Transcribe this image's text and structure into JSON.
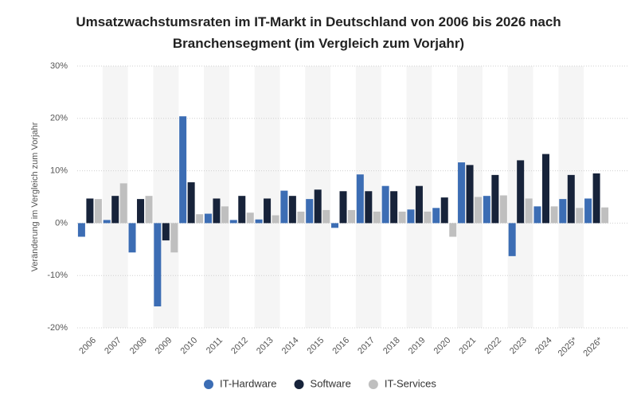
{
  "chart_data": {
    "type": "bar",
    "title": "Umsatzwachstumsraten im IT-Markt in Deutschland von 2006 bis 2026 nach Branchensegment (im Vergleich zum Vorjahr)",
    "y_label": "Veränderung im Vergleich zum Vorjahr",
    "categories": [
      "2006",
      "2007",
      "2008",
      "2009",
      "2010",
      "2011",
      "2012",
      "2013",
      "2014",
      "2015",
      "2016",
      "2017",
      "2018",
      "2019",
      "2020",
      "2021",
      "2022",
      "2023",
      "2024",
      "2025*",
      "2026*"
    ],
    "series": [
      {
        "name": "IT-Hardware",
        "color": "#3c6db4",
        "values": [
          -2.6,
          0.6,
          -5.6,
          -15.9,
          20.4,
          1.8,
          0.6,
          0.7,
          6.2,
          4.6,
          -0.9,
          9.3,
          7.1,
          2.6,
          2.9,
          11.6,
          5.2,
          -6.3,
          3.2,
          4.6,
          4.7
        ]
      },
      {
        "name": "Software",
        "color": "#17233a",
        "values": [
          4.7,
          5.2,
          4.6,
          -3.3,
          7.8,
          4.7,
          5.2,
          4.7,
          5.2,
          6.4,
          6.1,
          6.1,
          6.1,
          7.1,
          4.9,
          11.1,
          9.2,
          12.0,
          13.2,
          9.2,
          9.5
        ]
      },
      {
        "name": "IT-Services",
        "color": "#bfbfbf",
        "values": [
          4.6,
          7.6,
          5.2,
          -5.6,
          1.7,
          3.2,
          2.0,
          1.5,
          2.2,
          2.5,
          2.5,
          2.2,
          2.2,
          2.2,
          -2.6,
          5.0,
          5.3,
          4.7,
          3.2,
          2.9,
          3.0
        ]
      }
    ],
    "ylim": [
      -20,
      30
    ],
    "yticks": [
      {
        "value": -20,
        "label": "-20%"
      },
      {
        "value": -10,
        "label": "-10%"
      },
      {
        "value": 0,
        "label": "0%"
      },
      {
        "value": 10,
        "label": "10%"
      },
      {
        "value": 20,
        "label": "20%"
      },
      {
        "value": 30,
        "label": "30%"
      }
    ],
    "grid": true
  }
}
